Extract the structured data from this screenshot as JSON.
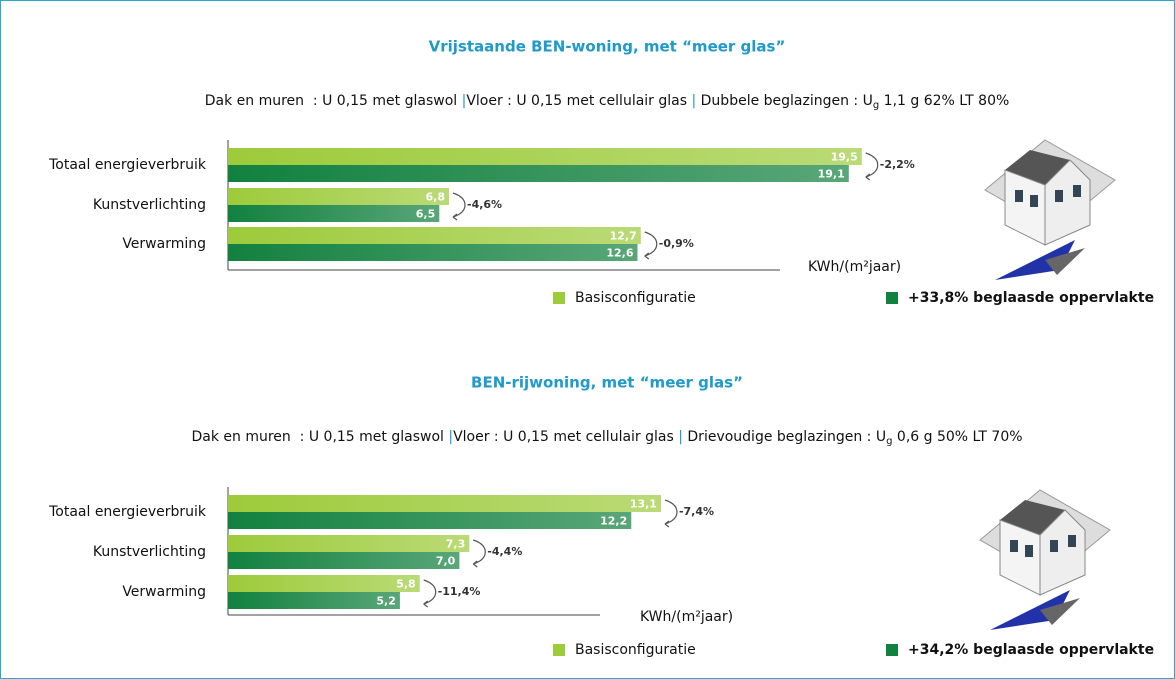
{
  "chart_data": [
    {
      "type": "bar",
      "orientation": "horizontal",
      "title": "Vrijstaande BEN-woning, met “meer glas”",
      "subtitle_parts": [
        "Dak en muren  : U 0,15 met glaswol ",
        "|",
        "Vloer : U 0,15 met cellulair glas ",
        "|",
        " Dubbele beglazingen : U",
        "g",
        " 1,1 g 62% LT 80%"
      ],
      "categories": [
        "Totaal energieverbruik",
        "Kunstverlichting",
        "Verwarming"
      ],
      "series": [
        {
          "name": "Basisconfiguratie",
          "color": "#9dcb3b",
          "values": [
            19.5,
            6.8,
            12.7
          ],
          "value_labels": [
            "19,5",
            "6,8",
            "12,7"
          ]
        },
        {
          "name": "+33,8% beglaasde oppervlakte",
          "color": "#12813f",
          "values": [
            19.1,
            6.5,
            12.6
          ],
          "value_labels": [
            "19,1",
            "6,5",
            "12,6"
          ]
        }
      ],
      "annotations": [
        "-2,2%",
        "-4,6%",
        "-0,9%"
      ],
      "x_label": "KWh/(m²jaar)",
      "xlim": [
        0,
        24
      ]
    },
    {
      "type": "bar",
      "orientation": "horizontal",
      "title": "BEN-rijwoning, met “meer glas”",
      "subtitle_parts": [
        "Dak en muren  : U 0,15 met glaswol ",
        "|",
        "Vloer : U 0,15 met cellulair glas ",
        "|",
        " Drievoudige beglazingen : U",
        "g",
        " 0,6 g 50% LT 70%"
      ],
      "categories": [
        "Totaal energieverbruik",
        "Kunstverlichting",
        "Verwarming"
      ],
      "series": [
        {
          "name": "Basisconfiguratie",
          "color": "#9dcb3b",
          "values": [
            13.1,
            7.3,
            5.8
          ],
          "value_labels": [
            "13,1",
            "7,3",
            "5,8"
          ]
        },
        {
          "name": "+34,2% beglaasde oppervlakte",
          "color": "#12813f",
          "values": [
            12.2,
            7.0,
            5.2
          ],
          "value_labels": [
            "12,2",
            "7,0",
            "5,2"
          ]
        }
      ],
      "annotations": [
        "-7,4%",
        "-4,4%",
        "-11,4%"
      ],
      "x_label": "KWh/(m²jaar)",
      "xlim": [
        0,
        23.6
      ]
    }
  ]
}
